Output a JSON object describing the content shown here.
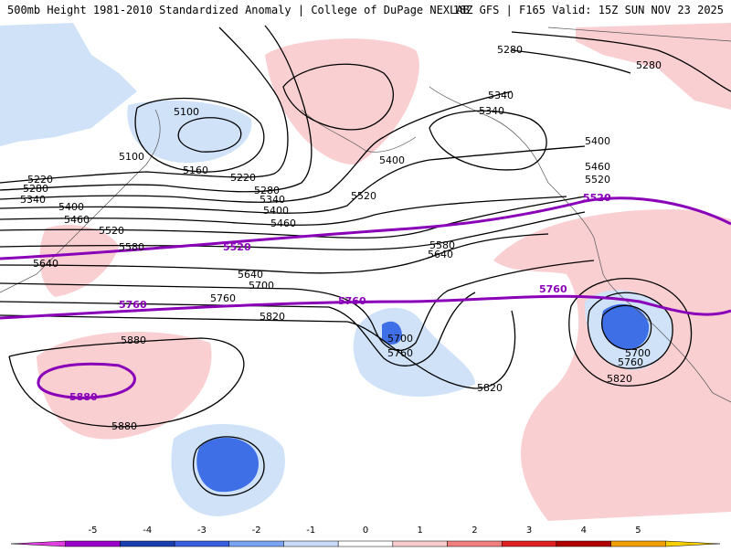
{
  "header": {
    "title": "500mb Height 1981-2010 Standardized Anomaly | College of DuPage NEXLAB",
    "run": "18Z GFS | F165 Valid: 15Z SUN NOV 23 2025"
  },
  "contour_labels": {
    "c5100a": "5100",
    "c5100b": "5100",
    "c5160": "5160",
    "c5220a": "5220",
    "c5220b": "5220",
    "c5280a": "5280",
    "c5280b": "5280",
    "c5280c": "5280",
    "c5280d": "5280",
    "c5340a": "5340",
    "c5340b": "5340",
    "c5340c": "5340",
    "c5340d": "5340",
    "c5400a": "5400",
    "c5400b": "5400",
    "c5400c": "5400",
    "c5400d": "5400",
    "c5460a": "5460",
    "c5460b": "5460",
    "c5460c": "5460",
    "c5520a": "5520",
    "c5520b": "5520",
    "c5520c": "5520",
    "c5580a": "5580",
    "c5580b": "5580",
    "c5640a": "5640",
    "c5640b": "5640",
    "c5640c": "5640",
    "c5700a": "5700",
    "c5700b": "5700",
    "c5700c": "5700",
    "c5760a": "5760",
    "c5760b": "5760",
    "c5760c": "5760",
    "c5820a": "5820",
    "c5820b": "5820",
    "c5820c": "5820",
    "c5880a": "5880",
    "c5880b": "5880"
  },
  "highlight_labels": {
    "p5520a": "5520",
    "p5520b": "5520",
    "p5760a": "5760",
    "p5760b": "5760",
    "p5760c": "5760",
    "p5880": "5880"
  },
  "scale": {
    "ticks": [
      "-5",
      "-4",
      "-3",
      "-2",
      "-1",
      "0",
      "1",
      "2",
      "3",
      "4",
      "5"
    ],
    "colors": [
      "#e040e0",
      "#9a00c8",
      "#1a3db0",
      "#3a5ee0",
      "#7aa4f2",
      "#c8dcf8",
      "#ffffff",
      "#f8cccc",
      "#f08080",
      "#e02020",
      "#b00000",
      "#f0a000",
      "#f8d000"
    ]
  },
  "colors": {
    "positive_anomaly": "#f9cfd2",
    "negative_anomaly": "#cfe2f8",
    "strong_negative": "#3f6fe6",
    "highlight_contour": "#8a00b8"
  }
}
